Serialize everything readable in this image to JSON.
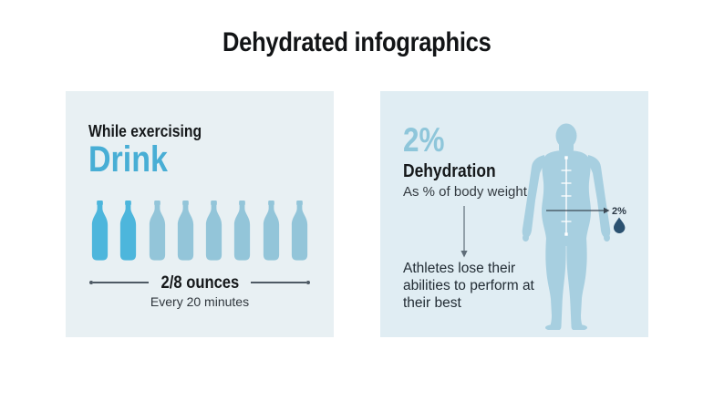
{
  "page": {
    "title": "Dehydrated infographics"
  },
  "colors": {
    "accent_blue": "#48aed5",
    "stat_pale_blue": "#8ec6da",
    "bottle_highlight": "#4db6dc",
    "bottle_muted": "#93c5d9",
    "body_silhouette": "#a7cfe0",
    "drop": "#2b5170",
    "measure_line": "#4e5a64",
    "left_panel_bg": "#e8f0f3",
    "right_panel_bg": "#e0edf3"
  },
  "left_panel": {
    "subtitle": "While exercising",
    "heading": "Drink",
    "bottles": {
      "total": 8,
      "highlighted": 2,
      "icon": "water-bottle-icon"
    },
    "amount_label": "2/8 ounces",
    "frequency_label": "Every 20 minutes"
  },
  "right_panel": {
    "stat_value": "2%",
    "stat_title": "Dehydration",
    "stat_subtitle": "As % of body weight",
    "description": "Athletes lose their abilities to perform at their best",
    "figure": {
      "callout_label": "2%",
      "icons": [
        "human-body-silhouette",
        "measure-ruler-icon",
        "water-drop-icon",
        "right-arrow-icon",
        "down-arrow-icon"
      ]
    }
  }
}
